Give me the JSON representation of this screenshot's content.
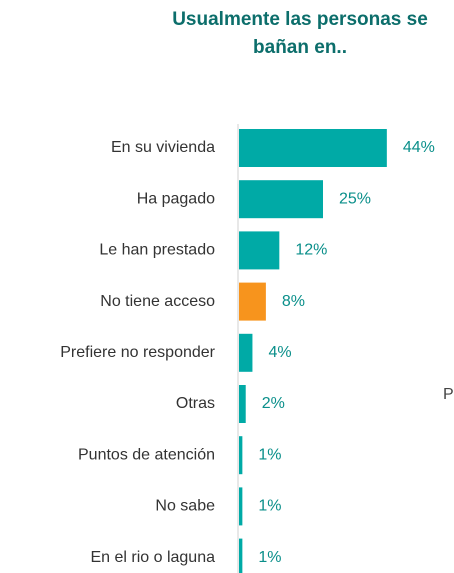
{
  "chart_data": {
    "type": "barh",
    "title": "Usualmente las personas se bañan en..",
    "categories": [
      "En su vivienda",
      "Ha pagado",
      "Le han prestado",
      "No tiene acceso",
      "Prefiere no responder",
      "Otras",
      "Puntos de atención",
      "No sabe",
      "En el rio o laguna"
    ],
    "values": [
      44,
      25,
      12,
      8,
      4,
      2,
      1,
      1,
      1
    ],
    "value_labels": [
      "44%",
      "25%",
      "12%",
      "8%",
      "4%",
      "2%",
      "1%",
      "1%",
      "1%"
    ],
    "colors": [
      "#00aaa6",
      "#00aaa6",
      "#00aaa6",
      "#f7941d",
      "#00aaa6",
      "#00aaa6",
      "#00aaa6",
      "#00aaa6",
      "#00aaa6"
    ],
    "annotation": "P"
  }
}
